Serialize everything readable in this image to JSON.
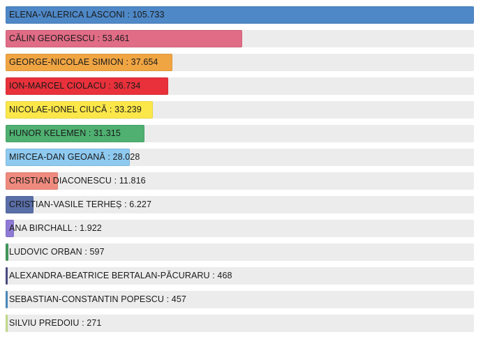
{
  "chart_data": {
    "type": "bar",
    "orientation": "horizontal",
    "categories": [
      "ELENA-VALERICA LASCONI",
      "CĂLIN GEORGESCU",
      "GEORGE-NICOLAE SIMION",
      "ION-MARCEL CIOLACU",
      "NICOLAE-IONEL CIUCĂ",
      "HUNOR KELEMEN",
      "MIRCEA-DAN GEOANĂ",
      "CRISTIAN DIACONESCU",
      "CRISTIAN-VASILE TERHEȘ",
      "ANA BIRCHALL",
      "LUDOVIC ORBAN",
      "ALEXANDRA-BEATRICE BERTALAN-PĂCURARU",
      "SEBASTIAN-CONSTANTIN POPESCU",
      "SILVIU PREDOIU"
    ],
    "values": [
      105733,
      53461,
      37654,
      36734,
      33239,
      31315,
      28028,
      11816,
      6227,
      1922,
      597,
      468,
      457,
      271
    ],
    "value_labels": [
      "105.733",
      "53.461",
      "37.654",
      "36.734",
      "33.239",
      "31.315",
      "28.028",
      "11.816",
      "6.227",
      "1.922",
      "597",
      "468",
      "457",
      "271"
    ],
    "colors": [
      "#4e88c7",
      "#e06c86",
      "#f0a543",
      "#e8313b",
      "#fce74a",
      "#4fb071",
      "#8ec9f0",
      "#ef8b7e",
      "#5a6ea8",
      "#8f7ad6",
      "#3f9a5a",
      "#4c4e86",
      "#4b8ec2",
      "#c9e28e"
    ],
    "track_color": "#ececec",
    "xlim": [
      0,
      105733
    ],
    "label_separator": " : ",
    "grid": false,
    "title": "",
    "xlabel": "",
    "ylabel": ""
  }
}
